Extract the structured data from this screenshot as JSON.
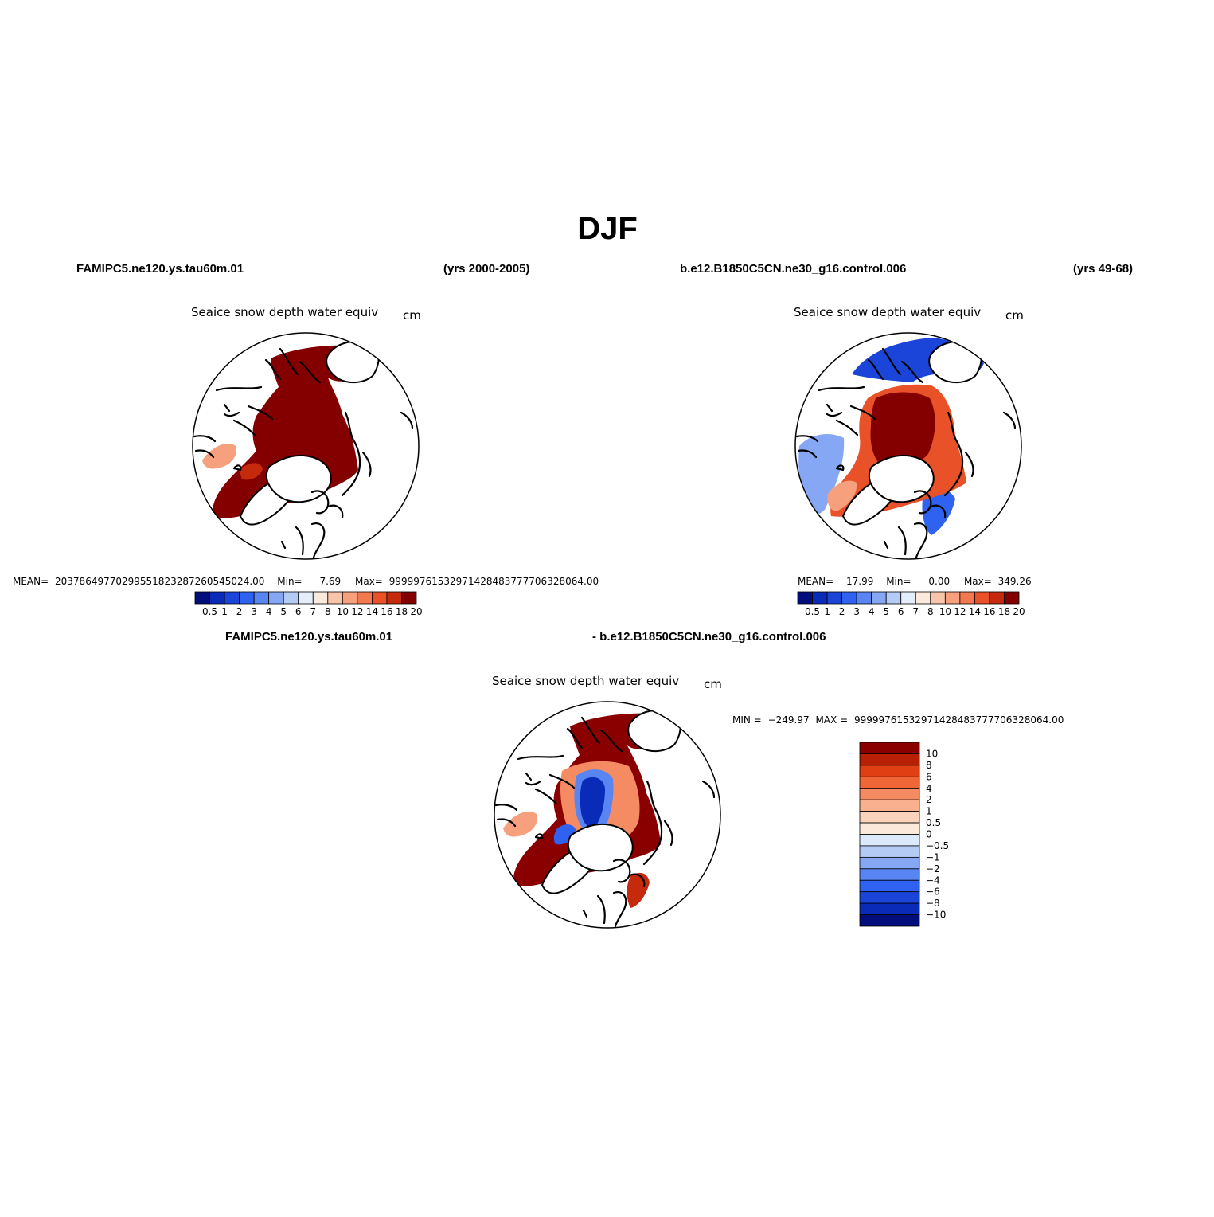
{
  "chart_data": {
    "type": "heatmap",
    "title": "DJF",
    "palette": {
      "abs": [
        "#000d7a",
        "#0a2ab8",
        "#1a45d8",
        "#2f62f0",
        "#5985f3",
        "#86a8f4",
        "#b4cbf6",
        "#e4eefa",
        "#fbe9dc",
        "#f8c5ab",
        "#f6a07d",
        "#f2784f",
        "#e95228",
        "#c62a0c",
        "#840000"
      ],
      "diff": [
        "#000d7a",
        "#0a2ab8",
        "#1a45d8",
        "#2f62f0",
        "#5985f3",
        "#86a8f4",
        "#b4cbf6",
        "#dbe9fa",
        "#fbe9dc",
        "#fbd2bc",
        "#f8b08f",
        "#f58b62",
        "#f06737",
        "#e03e13",
        "#b82006",
        "#8a0000"
      ]
    },
    "panels": [
      {
        "case": "FAMIPC5.ne120.ys.tau60m.01",
        "years": "(yrs 2000-2005)",
        "variable": "Seaice snow depth water equiv",
        "units": "cm",
        "stats": {
          "mean_label": "MEAN=",
          "mean": "20378649770299551823287260545024.00",
          "min_label": "Min=",
          "min": "7.69",
          "max_label": "Max=",
          "max": "99999761532971428483777706328064.00"
        },
        "colorbar_levels": [
          "0.5",
          "1",
          "2",
          "3",
          "4",
          "5",
          "6",
          "7",
          "8",
          "10",
          "12",
          "14",
          "16",
          "18",
          "20"
        ]
      },
      {
        "case": "b.e12.B1850C5CN.ne30_g16.control.006",
        "years": "(yrs 49-68)",
        "variable": "Seaice snow depth water equiv",
        "units": "cm",
        "stats": {
          "mean_label": "MEAN=",
          "mean": "17.99",
          "min_label": "Min=",
          "min": "0.00",
          "max_label": "Max=",
          "max": "349.26"
        },
        "colorbar_levels": [
          "0.5",
          "1",
          "2",
          "3",
          "4",
          "5",
          "6",
          "7",
          "8",
          "10",
          "12",
          "14",
          "16",
          "18",
          "20"
        ]
      },
      {
        "case_a": "FAMIPC5.ne120.ys.tau60m.01",
        "case_b": "- b.e12.B1850C5CN.ne30_g16.control.006",
        "variable": "Seaice snow depth water equiv",
        "units": "cm",
        "stats": {
          "min_label": "MIN =",
          "min": "−249.97",
          "max_label": "MAX =",
          "max": "99999761532971428483777706328064.00"
        },
        "colorbar_levels": [
          "10",
          "8",
          "6",
          "4",
          "2",
          "1",
          "0.5",
          "0",
          "−0.5",
          "−1",
          "−2",
          "−4",
          "−6",
          "−8",
          "−10"
        ]
      }
    ]
  }
}
